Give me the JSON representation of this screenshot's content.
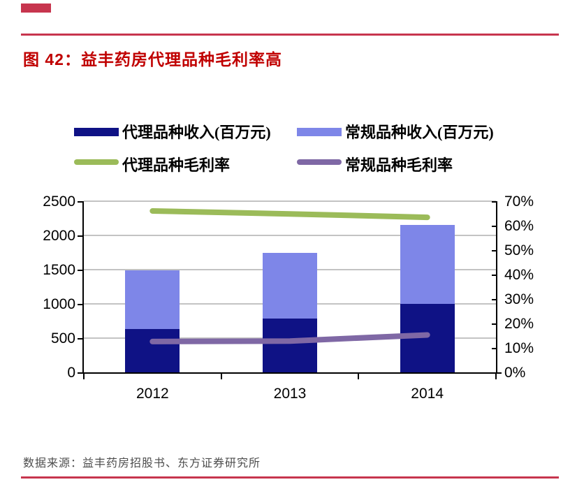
{
  "title": {
    "text": "图 42：益丰药房代理品种毛利率高",
    "color": "#c00000"
  },
  "decor": {
    "rule_color": "#c7354e"
  },
  "legend": {
    "items": [
      {
        "label": "代理品种收入(百万元)",
        "swatch": "bar",
        "color": "#0f1285"
      },
      {
        "label": "常规品种收入(百万元)",
        "swatch": "bar",
        "color": "#7e86e8"
      },
      {
        "label": "代理品种毛利率",
        "swatch": "line",
        "color": "#9bbb59"
      },
      {
        "label": "常规品种毛利率",
        "swatch": "line",
        "color": "#7f68a5"
      }
    ]
  },
  "chart_data": {
    "type": "bar",
    "subtype": "stacked-bars-with-lines",
    "categories": [
      "2012",
      "2013",
      "2014"
    ],
    "series": [
      {
        "name": "代理品种收入(百万元)",
        "type": "bar",
        "stack": true,
        "axis": "left",
        "color": "#0f1285",
        "values": [
          630,
          790,
          1000
        ]
      },
      {
        "name": "常规品种收入(百万元)",
        "type": "bar",
        "stack": true,
        "axis": "left",
        "color": "#7e86e8",
        "values": [
          860,
          950,
          1150
        ]
      },
      {
        "name": "代理品种毛利率",
        "type": "line",
        "stack": false,
        "axis": "right",
        "color": "#9bbb59",
        "values": [
          66,
          64.8,
          63.4
        ]
      },
      {
        "name": "常规品种毛利率",
        "type": "line",
        "stack": false,
        "axis": "right",
        "color": "#7f68a5",
        "values": [
          12.6,
          12.8,
          15.3
        ]
      }
    ],
    "left_axis": {
      "min": 0,
      "max": 2500,
      "step": 500,
      "ticks": [
        "2500",
        "2000",
        "1500",
        "1000",
        "500",
        "0"
      ]
    },
    "right_axis": {
      "min": 0,
      "max": 70,
      "step": 10,
      "ticks": [
        "70%",
        "60%",
        "50%",
        "40%",
        "30%",
        "20%",
        "10%",
        "0%"
      ]
    },
    "grid": true,
    "legend_position": "top",
    "gridline_color": "#c3c3c3"
  },
  "footer": {
    "text": "数据来源：益丰药房招股书、东方证券研究所"
  }
}
